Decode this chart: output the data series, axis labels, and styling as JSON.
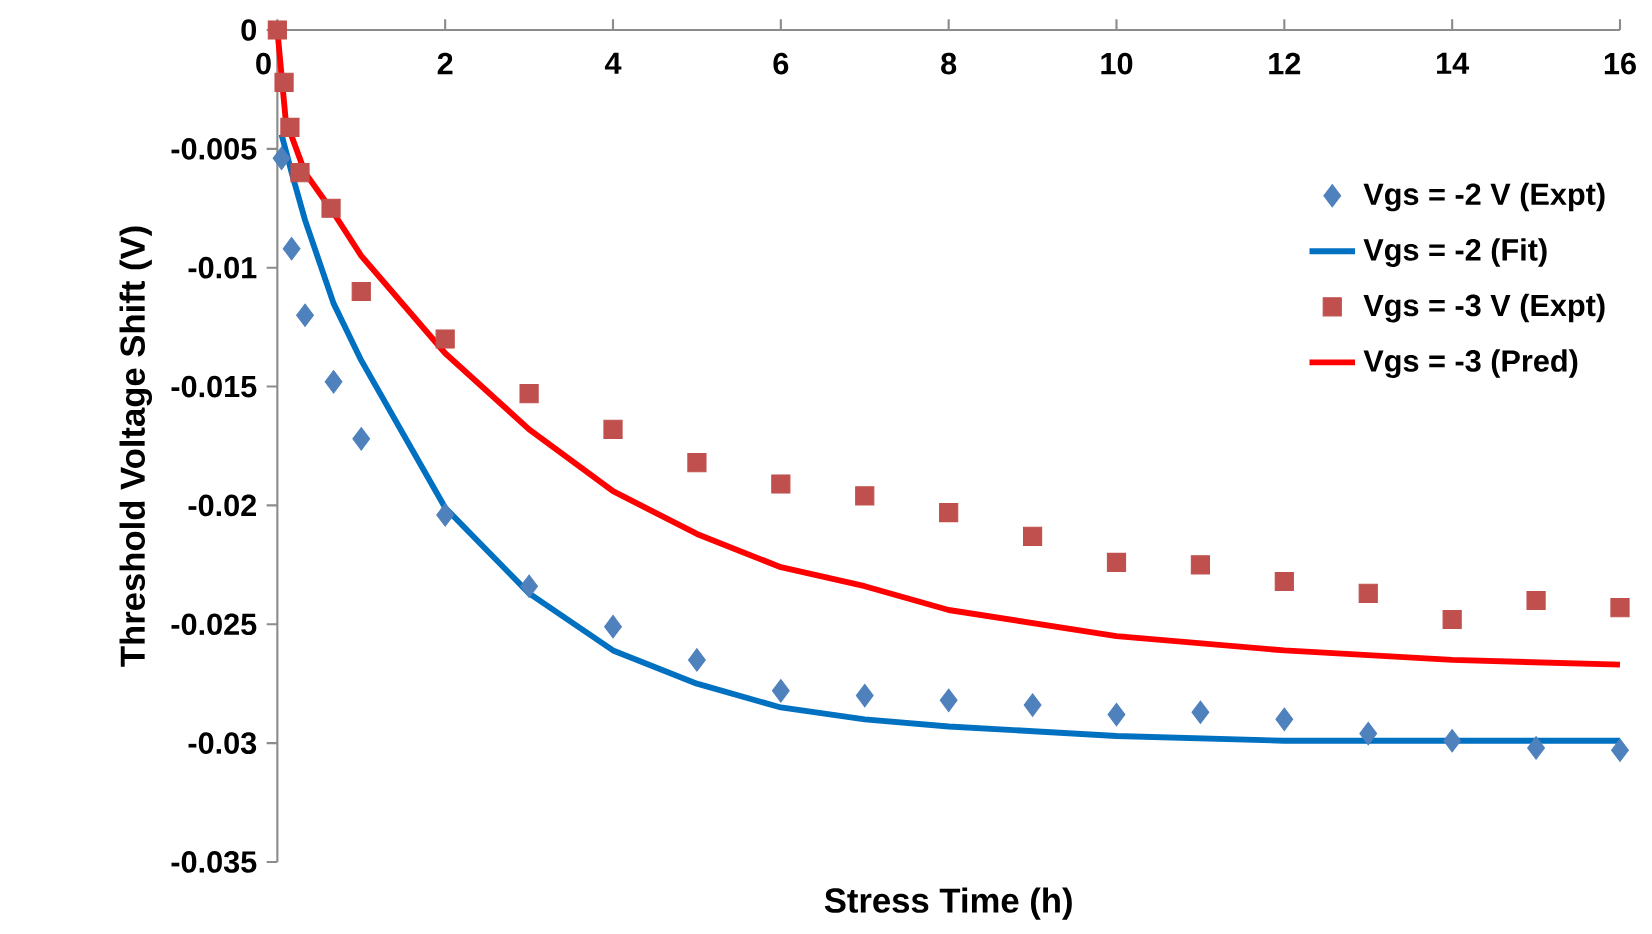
{
  "chart_data": {
    "type": "scatter",
    "xlabel": "Stress Time (h)",
    "ylabel": "Threshold Voltage Shift (V)",
    "xlim": [
      0,
      16
    ],
    "xticks": [
      0,
      2,
      4,
      6,
      8,
      10,
      12,
      14,
      16
    ],
    "ylim": [
      -0.035,
      0
    ],
    "yticks": [
      -0.035,
      -0.03,
      -0.025,
      -0.02,
      -0.015,
      -0.01,
      -0.005,
      0
    ],
    "grid": false,
    "legend": "top right",
    "series": [
      {
        "name": "Vgs = -2 V (Expt)",
        "marker": "diamond",
        "color": "#4f81bd",
        "x": [
          0.05,
          0.17,
          0.33,
          0.67,
          1,
          2,
          3,
          4,
          5,
          6,
          7,
          8,
          9,
          10,
          11,
          12,
          13,
          14,
          15,
          16
        ],
        "values": [
          -0.0054,
          -0.0092,
          -0.012,
          -0.0148,
          -0.0172,
          -0.0204,
          -0.0234,
          -0.0251,
          -0.0265,
          -0.0278,
          -0.028,
          -0.0282,
          -0.0284,
          -0.0288,
          -0.0287,
          -0.029,
          -0.0296,
          -0.0299,
          -0.0302,
          -0.0303
        ]
      },
      {
        "name": "Vgs = -2 (Fit)",
        "type": "line",
        "color": "#0070c0",
        "x": [
          0.05,
          0.17,
          0.33,
          0.67,
          1,
          2,
          3,
          4,
          5,
          6,
          7,
          8,
          10,
          12,
          14,
          16
        ],
        "values": [
          -0.0044,
          -0.006,
          -0.008,
          -0.0115,
          -0.0139,
          -0.0201,
          -0.0237,
          -0.0261,
          -0.0275,
          -0.0285,
          -0.029,
          -0.0293,
          -0.0297,
          -0.0299,
          -0.0299,
          -0.0299
        ]
      },
      {
        "name": "Vgs = -3 V (Expt)",
        "marker": "square",
        "color": "#c0504d",
        "x": [
          0,
          0.08,
          0.15,
          0.27,
          0.64,
          1,
          2,
          3,
          4,
          5,
          6,
          7,
          8,
          9,
          10,
          11,
          12,
          13,
          14,
          15,
          16
        ],
        "values": [
          0,
          -0.0022,
          -0.0041,
          -0.006,
          -0.0075,
          -0.011,
          -0.013,
          -0.0153,
          -0.0168,
          -0.0182,
          -0.0191,
          -0.0196,
          -0.0203,
          -0.0213,
          -0.0224,
          -0.0225,
          -0.0232,
          -0.0237,
          -0.0248,
          -0.024,
          -0.0243
        ]
      },
      {
        "name": "Vgs = -3 (Pred)",
        "type": "line",
        "color": "#ff0000",
        "x": [
          0,
          0.1,
          0.33,
          0.67,
          1,
          2,
          3,
          4,
          5,
          6,
          7,
          8,
          10,
          12,
          14,
          16
        ],
        "values": [
          0,
          -0.0038,
          -0.006,
          -0.0077,
          -0.0095,
          -0.0136,
          -0.0168,
          -0.0194,
          -0.0212,
          -0.0226,
          -0.0234,
          -0.0244,
          -0.0255,
          -0.0261,
          -0.0265,
          -0.0267
        ]
      }
    ]
  }
}
